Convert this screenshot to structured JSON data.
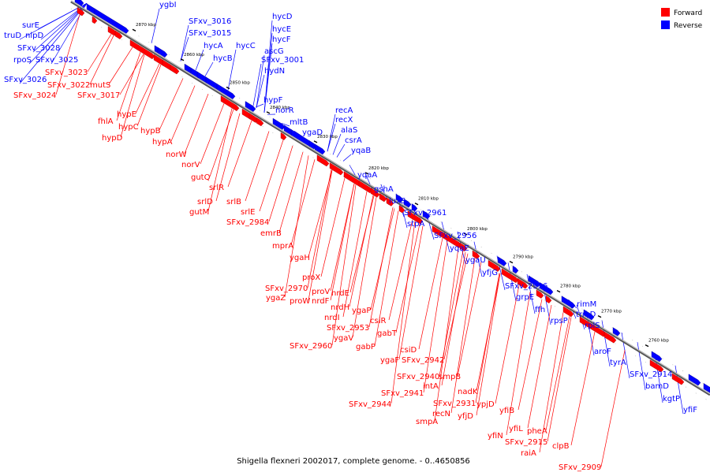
{
  "caption": "Shigella flexneri 2002017, complete genome. - 0..4650856",
  "legend": [
    {
      "name": "Forward",
      "color": "#ff0000"
    },
    {
      "name": "Reverse",
      "color": "#0000ff"
    }
  ],
  "colors": {
    "forward": "#ff0000",
    "reverse": "#0000ff",
    "backbone": "#808080"
  },
  "kbp_ticks": [
    "2870 kbp",
    "2860 kbp",
    "2850 kbp",
    "2840 kbp",
    "2830 kbp",
    "2820 kbp",
    "2810 kbp",
    "2800 kbp",
    "2790 kbp",
    "2780 kbp",
    "2770 kbp",
    "2760 kbp"
  ],
  "reverse_labels": [
    "ygbI",
    "SFxv_3016",
    "SFxv_3015",
    "hycA",
    "hycB",
    "hycC",
    "hycD",
    "hycE",
    "hycF",
    "ascG",
    "SFxv_3001",
    "hydN",
    "hypF",
    "norR",
    "mltB",
    "ygaD",
    "recA",
    "recX",
    "alaS",
    "csrA",
    "yqaB",
    "yqaA",
    "gshA",
    "luxS",
    "SFxv_2961",
    "stpA",
    "SFxv_2956",
    "yqaE",
    "ygaU",
    "yfjG",
    "SFxv_2936",
    "grpE",
    "ffh",
    "rpsP",
    "rimM",
    "trmD",
    "rplS",
    "aroF",
    "tyrA",
    "SFxv_2914",
    "bamD",
    "kgtP",
    "yfiF",
    "surE",
    "truD",
    "nlpD",
    "SFxv_3028",
    "rpoS",
    "SFxv_3025",
    "SFxv_3026"
  ],
  "forward_labels": [
    "SFxv_3023",
    "SFxv_3022",
    "mutS",
    "SFxv_3024",
    "SFxv_3017",
    "hypE",
    "fhlA",
    "hypC",
    "hypB",
    "hypD",
    "hypA",
    "norW",
    "norV",
    "gutQ",
    "srlR",
    "srlD",
    "srlB",
    "gutM",
    "srlE",
    "SFxv_2984",
    "emrB",
    "mprA",
    "ygaH",
    "proX",
    "SFxv_2970",
    "proV",
    "ygaZ",
    "proW",
    "nrdF",
    "nrdE",
    "nrdH",
    "nrdI",
    "ygaP",
    "SFxv_2953",
    "csiR",
    "ygaV",
    "gabT",
    "SFxv_2960",
    "gabP",
    "csiD",
    "ygaF",
    "SFxv_2942",
    "SFxv_2940",
    "smpB",
    "intA",
    "SFxv_2941",
    "nadK",
    "SFxv_2944",
    "SFxv_2931",
    "ypjD",
    "recN",
    "yfjD",
    "smpA",
    "yfiB",
    "yfiL",
    "yfiN",
    "pheA",
    "SFxv_2915",
    "raiA",
    "clpB",
    "SFxv_2909"
  ]
}
